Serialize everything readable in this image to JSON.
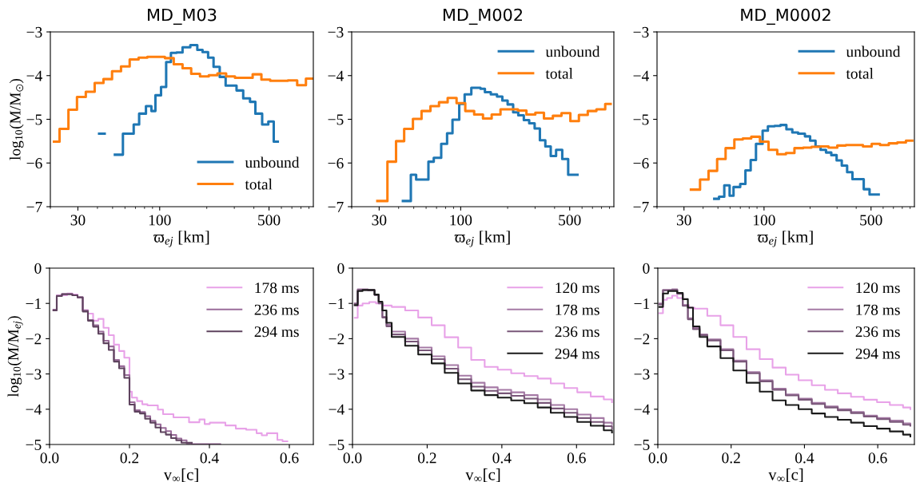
{
  "chart_data": [
    {
      "type": "step",
      "title": "MD_M03",
      "xlabel": "ϖ$_{ej}$ [km]",
      "ylabel": "log$_{10}$(M/M$_{⊙}$)",
      "log": "x",
      "xlim": [
        20,
        960
      ],
      "ylim": [
        -7,
        -3
      ],
      "legend": "lower right",
      "xticks": [
        {
          "value": 20,
          "label": null
        },
        30,
        {
          "value": 40,
          "label": null
        },
        {
          "value": 50,
          "label": null
        },
        {
          "value": 60,
          "label": null
        },
        {
          "value": 70,
          "label": null
        },
        {
          "value": 80,
          "label": null
        },
        {
          "value": 90,
          "label": null
        },
        100,
        {
          "value": 200,
          "label": null
        },
        {
          "value": 300,
          "label": null
        },
        {
          "value": 400,
          "label": null
        },
        500,
        {
          "value": 600,
          "label": null
        },
        {
          "value": 700,
          "label": null
        },
        {
          "value": 800,
          "label": null
        },
        {
          "value": 900,
          "label": null
        }
      ],
      "yticks": [
        -7,
        -6,
        -5,
        -4,
        -3
      ],
      "series": [
        {
          "name": "unbound",
          "color": "#1f77b4",
          "x": [
            41.0,
            44.5,
            51.7,
            58.2,
            68.2,
            73.9,
            81.7,
            88.5,
            93.9,
            102,
            110,
            118,
            128,
            140,
            157,
            174,
            188,
            204,
            221,
            242,
            264,
            310,
            342,
            378,
            409,
            452,
            495,
            536,
            569
          ],
          "values": [
            -5.33,
            null,
            -5.81,
            -5.33,
            -5.12,
            -4.87,
            -4.7,
            -4.81,
            -4.45,
            -4.26,
            -3.69,
            -3.48,
            -3.47,
            -3.35,
            -3.3,
            -3.41,
            -3.46,
            -3.59,
            -3.8,
            -4.03,
            -4.23,
            -4.34,
            -4.52,
            -4.6,
            -4.87,
            -5.12,
            -5.05,
            -5.51,
            -5.51
          ]
        },
        {
          "name": "total",
          "color": "#ff7f0e",
          "x": [
            21.1,
            22.9,
            26.1,
            29.6,
            33.7,
            38.4,
            43.7,
            49.6,
            56.6,
            64.3,
            73.3,
            83.3,
            108,
            123,
            140,
            159,
            181,
            206,
            234,
            266,
            303,
            393,
            447,
            509,
            659,
            757,
            861,
            944
          ],
          "values": [
            -5.51,
            -5.22,
            -4.78,
            -4.49,
            -4.37,
            -4.17,
            -4.08,
            -3.9,
            -3.79,
            -3.63,
            -3.59,
            -3.57,
            -3.6,
            -3.74,
            -3.83,
            -3.96,
            -4.02,
            -3.99,
            -3.95,
            -4.02,
            -4.05,
            -3.97,
            -4.09,
            -4.12,
            -4.11,
            -4.22,
            -4.07,
            -4.07
          ]
        }
      ]
    },
    {
      "type": "step",
      "title": "MD_M002",
      "xlabel": "ϖ$_{ej}$ [km]",
      "log": "x",
      "xlim": [
        20,
        960
      ],
      "ylim": [
        -7,
        -3
      ],
      "legend": "top right",
      "xticks": [
        {
          "value": 20,
          "label": null
        },
        30,
        {
          "value": 40,
          "label": null
        },
        {
          "value": 50,
          "label": null
        },
        {
          "value": 60,
          "label": null
        },
        {
          "value": 70,
          "label": null
        },
        {
          "value": 80,
          "label": null
        },
        {
          "value": 90,
          "label": null
        },
        100,
        {
          "value": 200,
          "label": null
        },
        {
          "value": 300,
          "label": null
        },
        {
          "value": 400,
          "label": null
        },
        500,
        {
          "value": 600,
          "label": null
        },
        {
          "value": 700,
          "label": null
        },
        {
          "value": 800,
          "label": null
        },
        {
          "value": 900,
          "label": null
        }
      ],
      "yticks": [
        -7,
        -6,
        -5,
        -4,
        -3
      ],
      "series": [
        {
          "name": "unbound",
          "color": "#1f77b4",
          "x": [
            42.6,
            47.9,
            51.8,
            62.1,
            67.2,
            75.0,
            81.8,
            88.6,
            97.9,
            106,
            117,
            134,
            143,
            156,
            171,
            185,
            200,
            217,
            234,
            254,
            275,
            298,
            322,
            349,
            378,
            409,
            448,
            489,
            561
          ],
          "values": [
            -6.87,
            -6.27,
            -6.38,
            -5.97,
            -5.88,
            -5.56,
            -5.32,
            -5.01,
            -4.65,
            -4.43,
            -4.28,
            -4.3,
            -4.38,
            -4.43,
            -4.48,
            -4.57,
            -4.66,
            -4.84,
            -4.91,
            -5.02,
            -5.09,
            -5.21,
            -5.48,
            -5.62,
            -5.84,
            -5.7,
            -5.91,
            -6.27,
            -6.27
          ]
        },
        {
          "name": "total",
          "color": "#ff7f0e",
          "x": [
            29.2,
            33.9,
            38.5,
            43.4,
            49.4,
            56.1,
            64.0,
            72.6,
            82.5,
            94.1,
            107,
            122,
            139,
            158,
            180,
            204,
            233,
            264,
            301,
            342,
            390,
            443,
            505,
            573,
            653,
            742,
            845,
            915
          ],
          "values": [
            -6.87,
            -5.97,
            -5.5,
            -5.22,
            -4.99,
            -4.81,
            -4.7,
            -4.61,
            -4.51,
            -4.63,
            -4.81,
            -4.89,
            -4.98,
            -4.89,
            -4.77,
            -4.77,
            -4.8,
            -4.89,
            -4.85,
            -4.98,
            -4.92,
            -4.86,
            -5.04,
            -4.9,
            -4.81,
            -4.77,
            -4.65,
            -4.65
          ]
        }
      ]
    },
    {
      "type": "step",
      "title": "MD_M0002",
      "xlabel": "ϖ$_{ej}$ [km]",
      "log": "x",
      "xlim": [
        20,
        960
      ],
      "ylim": [
        -7,
        -3
      ],
      "legend": "top right",
      "xticks": [
        {
          "value": 20,
          "label": null
        },
        30,
        {
          "value": 40,
          "label": null
        },
        {
          "value": 50,
          "label": null
        },
        {
          "value": 60,
          "label": null
        },
        {
          "value": 70,
          "label": null
        },
        {
          "value": 80,
          "label": null
        },
        {
          "value": 90,
          "label": null
        },
        100,
        {
          "value": 200,
          "label": null
        },
        {
          "value": 300,
          "label": null
        },
        {
          "value": 400,
          "label": null
        },
        500,
        {
          "value": 600,
          "label": null
        },
        {
          "value": 700,
          "label": null
        },
        {
          "value": 800,
          "label": null
        },
        {
          "value": 900,
          "label": null
        }
      ],
      "yticks": [
        -7,
        -6,
        -5,
        -4,
        -3
      ],
      "series": [
        {
          "name": "unbound",
          "color": "#1f77b4",
          "x": [
            47.3,
            50.8,
            55.0,
            59.6,
            63.2,
            69.9,
            75.6,
            81.8,
            88.6,
            97.9,
            106,
            117,
            128,
            140,
            153,
            167,
            185,
            200,
            217,
            234,
            254,
            275,
            298,
            322,
            349,
            378,
            448,
            489,
            561
          ],
          "values": [
            -6.82,
            -6.77,
            -6.51,
            -6.75,
            -6.55,
            -6.48,
            -6.17,
            -5.93,
            -5.56,
            -5.26,
            -5.16,
            -5.15,
            -5.13,
            -5.23,
            -5.3,
            -5.33,
            -5.39,
            -5.49,
            -5.62,
            -5.7,
            -5.76,
            -5.82,
            -5.94,
            -6.06,
            -6.21,
            -6.37,
            -6.6,
            -6.72,
            -6.72
          ]
        },
        {
          "name": "total",
          "color": "#ff7f0e",
          "x": [
            33.3,
            38.2,
            43.4,
            49.4,
            56.1,
            64.0,
            72.6,
            82.5,
            94.1,
            107,
            122,
            139,
            158,
            180,
            204,
            233,
            264,
            301,
            342,
            390,
            443,
            505,
            573,
            653,
            742,
            845,
            930
          ],
          "values": [
            -6.61,
            -6.38,
            -6.18,
            -5.91,
            -5.66,
            -5.46,
            -5.44,
            -5.4,
            -5.51,
            -5.7,
            -5.8,
            -5.77,
            -5.66,
            -5.65,
            -5.63,
            -5.62,
            -5.65,
            -5.6,
            -5.59,
            -5.59,
            -5.62,
            -5.56,
            -5.59,
            -5.55,
            -5.53,
            -5.49,
            -5.49
          ]
        }
      ]
    },
    {
      "type": "step",
      "xlabel": "v$_{∞}$[c]",
      "ylabel": "log$_{10}$(M/M$_{ej}$)",
      "xlim": [
        0,
        0.66
      ],
      "ylim": [
        -5,
        0
      ],
      "legend": "top right",
      "xticks": [
        {
          "value": 0,
          "label": "0.0"
        },
        0.2,
        0.4,
        0.6
      ],
      "yticks": [
        -5,
        -4,
        -3,
        -2,
        -1,
        0
      ],
      "series": [
        {
          "name": "178 ms",
          "color": "#e8a2e8",
          "x": [
            0.0097,
            0.018,
            0.044,
            0.057,
            0.07,
            0.083,
            0.096,
            0.109,
            0.122,
            0.135,
            0.148,
            0.161,
            0.174,
            0.187,
            0.2,
            0.206,
            0.219,
            0.232,
            0.245,
            0.271,
            0.284,
            0.31,
            0.349,
            0.375,
            0.388,
            0.401,
            0.44,
            0.466,
            0.492,
            0.518,
            0.531,
            0.544,
            0.57,
            0.583,
            0.595
          ],
          "values": [
            -1.2,
            -0.77,
            -0.72,
            -0.75,
            -0.83,
            -1.19,
            -1.29,
            -1.49,
            -1.44,
            -1.69,
            -1.9,
            -2.17,
            -2.35,
            -2.54,
            -3.5,
            -3.67,
            -3.77,
            -3.86,
            -3.89,
            -4.01,
            -4.14,
            -4.23,
            -4.37,
            -4.29,
            -4.42,
            -4.38,
            -4.46,
            -4.55,
            -4.58,
            -4.68,
            -4.74,
            -4.68,
            -4.87,
            -4.91,
            -4.91
          ]
        },
        {
          "name": "236 ms",
          "color": "#9a6c9a",
          "x": [
            0.0097,
            0.018,
            0.031,
            0.057,
            0.07,
            0.083,
            0.096,
            0.109,
            0.122,
            0.135,
            0.148,
            0.161,
            0.174,
            0.187,
            0.2,
            0.213,
            0.226,
            0.239,
            0.252,
            0.265,
            0.278,
            0.291,
            0.304,
            0.317,
            0.33,
            0.343,
            0.356,
            0.427
          ],
          "values": [
            -1.18,
            -0.78,
            -0.73,
            -0.77,
            -0.82,
            -1.2,
            -1.47,
            -1.62,
            -1.8,
            -2.06,
            -2.22,
            -2.6,
            -2.78,
            -3.03,
            -3.8,
            -4.03,
            -4.08,
            -4.2,
            -4.33,
            -4.43,
            -4.53,
            -4.62,
            -4.73,
            -4.83,
            -4.88,
            -4.97,
            -4.99,
            -4.99
          ]
        },
        {
          "name": "294 ms",
          "color": "#5e435e",
          "x": [
            0.0097,
            0.018,
            0.031,
            0.057,
            0.07,
            0.083,
            0.096,
            0.109,
            0.122,
            0.135,
            0.148,
            0.161,
            0.174,
            0.187,
            0.2,
            0.213,
            0.226,
            0.239,
            0.252,
            0.265,
            0.278,
            0.291,
            0.304,
            0.317,
            0.33,
            0.356
          ],
          "values": [
            -1.2,
            -0.79,
            -0.74,
            -0.77,
            -0.83,
            -1.23,
            -1.49,
            -1.66,
            -1.86,
            -2.13,
            -2.32,
            -2.65,
            -2.84,
            -3.11,
            -3.87,
            -4.07,
            -4.12,
            -4.27,
            -4.38,
            -4.52,
            -4.65,
            -4.72,
            -4.82,
            -4.88,
            -4.95,
            -4.95
          ]
        }
      ]
    },
    {
      "type": "step",
      "xlabel": "v$_{∞}$[c]",
      "xlim": [
        0,
        0.7
      ],
      "ylim": [
        -5,
        0
      ],
      "legend": "top right",
      "xticks": [
        {
          "value": 0,
          "label": "0.0"
        },
        0.2,
        0.4,
        0.6
      ],
      "yticks": [
        -5,
        -4,
        -3,
        -2,
        -1,
        0
      ],
      "series": [
        {
          "name": "120 ms",
          "color": "#e8a2e8",
          "x": [
            0.006,
            0.014,
            0.027,
            0.045,
            0.063,
            0.08,
            0.105,
            0.141,
            0.176,
            0.212,
            0.247,
            0.283,
            0.318,
            0.354,
            0.389,
            0.425,
            0.46,
            0.496,
            0.531,
            0.567,
            0.602,
            0.638,
            0.673,
            0.695
          ],
          "values": [
            -1.41,
            -1.06,
            -1.0,
            -0.96,
            -1.0,
            -1.06,
            -1.1,
            -1.2,
            -1.4,
            -1.62,
            -1.96,
            -2.25,
            -2.6,
            -2.8,
            -2.88,
            -2.98,
            -3.06,
            -3.13,
            -3.27,
            -3.4,
            -3.52,
            -3.64,
            -3.72,
            -3.8
          ]
        },
        {
          "name": "178 ms",
          "color": "#a57aa5",
          "x": [
            0.006,
            0.014,
            0.041,
            0.059,
            0.07,
            0.08,
            0.091,
            0.105,
            0.141,
            0.176,
            0.212,
            0.247,
            0.283,
            0.318,
            0.354,
            0.389,
            0.425,
            0.46,
            0.496,
            0.531,
            0.567,
            0.602,
            0.638,
            0.673,
            0.695
          ],
          "values": [
            -1.05,
            -0.6,
            -0.62,
            -0.75,
            -0.98,
            -1.38,
            -1.61,
            -1.8,
            -2.0,
            -2.25,
            -2.5,
            -2.75,
            -3.05,
            -3.25,
            -3.38,
            -3.45,
            -3.52,
            -3.6,
            -3.72,
            -3.88,
            -4.0,
            -4.15,
            -4.25,
            -4.38,
            -4.42
          ]
        },
        {
          "name": "236 ms",
          "color": "#795779",
          "x": [
            0.006,
            0.014,
            0.041,
            0.059,
            0.07,
            0.08,
            0.091,
            0.105,
            0.141,
            0.176,
            0.212,
            0.247,
            0.283,
            0.318,
            0.354,
            0.389,
            0.425,
            0.46,
            0.496,
            0.531,
            0.567,
            0.602,
            0.638,
            0.673,
            0.695
          ],
          "values": [
            -1.0,
            -0.62,
            -0.63,
            -0.76,
            -1.0,
            -1.4,
            -1.65,
            -1.88,
            -2.08,
            -2.33,
            -2.58,
            -2.85,
            -3.15,
            -3.36,
            -3.48,
            -3.55,
            -3.62,
            -3.7,
            -3.82,
            -3.98,
            -4.1,
            -4.25,
            -4.36,
            -4.48,
            -4.55
          ]
        },
        {
          "name": "294 ms",
          "color": "#1a1a1a",
          "x": [
            0.006,
            0.014,
            0.027,
            0.059,
            0.07,
            0.08,
            0.091,
            0.105,
            0.141,
            0.176,
            0.212,
            0.247,
            0.283,
            0.318,
            0.354,
            0.389,
            0.425,
            0.46,
            0.496,
            0.531,
            0.567,
            0.602,
            0.638,
            0.673,
            0.695
          ],
          "values": [
            -1.05,
            -0.65,
            -0.62,
            -0.75,
            -0.95,
            -1.2,
            -1.55,
            -1.95,
            -2.2,
            -2.45,
            -2.7,
            -2.97,
            -3.27,
            -3.47,
            -3.6,
            -3.67,
            -3.75,
            -3.83,
            -3.95,
            -4.1,
            -4.22,
            -4.36,
            -4.47,
            -4.6,
            -4.66
          ]
        }
      ]
    },
    {
      "type": "step",
      "xlabel": "v$_{∞}$[c]",
      "xlim": [
        0,
        0.7
      ],
      "ylim": [
        -5,
        0
      ],
      "legend": "top right",
      "xticks": [
        {
          "value": 0,
          "label": "0.0"
        },
        0.2,
        0.4,
        0.6
      ],
      "yticks": [
        -5,
        -4,
        -3,
        -2,
        -1,
        0
      ],
      "series": [
        {
          "name": "120 ms",
          "color": "#e8a2e8",
          "x": [
            0.004,
            0.014,
            0.025,
            0.039,
            0.053,
            0.068,
            0.085,
            0.1,
            0.135,
            0.171,
            0.206,
            0.242,
            0.278,
            0.313,
            0.349,
            0.384,
            0.42,
            0.456,
            0.491,
            0.527,
            0.562,
            0.598,
            0.633,
            0.669,
            0.689
          ],
          "values": [
            -1.28,
            -0.9,
            -0.85,
            -0.78,
            -0.85,
            -1.05,
            -1.12,
            -1.15,
            -1.35,
            -1.62,
            -1.95,
            -2.3,
            -2.58,
            -2.82,
            -3.02,
            -3.18,
            -3.32,
            -3.45,
            -3.55,
            -3.65,
            -3.73,
            -3.8,
            -3.88,
            -3.95,
            -4.0
          ]
        },
        {
          "name": "178 ms",
          "color": "#a57aa5",
          "x": [
            0.004,
            0.014,
            0.039,
            0.053,
            0.068,
            0.082,
            0.096,
            0.114,
            0.135,
            0.171,
            0.206,
            0.242,
            0.278,
            0.313,
            0.349,
            0.384,
            0.42,
            0.456,
            0.491,
            0.527,
            0.562,
            0.598,
            0.633,
            0.669,
            0.689
          ],
          "values": [
            -1.0,
            -0.62,
            -0.6,
            -0.72,
            -1.05,
            -1.42,
            -1.7,
            -1.88,
            -2.02,
            -2.3,
            -2.62,
            -2.95,
            -3.18,
            -3.42,
            -3.58,
            -3.7,
            -3.82,
            -3.92,
            -4.0,
            -4.08,
            -4.18,
            -4.25,
            -4.32,
            -4.4,
            -4.43
          ]
        },
        {
          "name": "236 ms",
          "color": "#795779",
          "x": [
            0.004,
            0.014,
            0.039,
            0.053,
            0.068,
            0.082,
            0.096,
            0.114,
            0.135,
            0.171,
            0.206,
            0.242,
            0.278,
            0.313,
            0.349,
            0.384,
            0.42,
            0.456,
            0.491,
            0.527,
            0.562,
            0.598,
            0.633,
            0.669,
            0.689
          ],
          "values": [
            -1.03,
            -0.63,
            -0.62,
            -0.73,
            -1.07,
            -1.45,
            -1.73,
            -1.9,
            -2.05,
            -2.33,
            -2.65,
            -2.98,
            -3.21,
            -3.45,
            -3.61,
            -3.73,
            -3.85,
            -3.95,
            -4.03,
            -4.11,
            -4.21,
            -4.28,
            -4.36,
            -4.44,
            -4.47
          ]
        },
        {
          "name": "294 ms",
          "color": "#1a1a1a",
          "x": [
            0.004,
            0.014,
            0.028,
            0.053,
            0.068,
            0.082,
            0.096,
            0.114,
            0.135,
            0.171,
            0.206,
            0.242,
            0.278,
            0.313,
            0.349,
            0.384,
            0.42,
            0.456,
            0.491,
            0.527,
            0.562,
            0.598,
            0.633,
            0.669,
            0.689
          ],
          "values": [
            -1.1,
            -0.72,
            -0.65,
            -0.7,
            -0.88,
            -1.12,
            -1.65,
            -1.95,
            -2.22,
            -2.55,
            -2.9,
            -3.25,
            -3.5,
            -3.75,
            -3.88,
            -4.0,
            -4.12,
            -4.22,
            -4.3,
            -4.38,
            -4.48,
            -4.55,
            -4.63,
            -4.72,
            -4.77
          ]
        }
      ]
    }
  ]
}
